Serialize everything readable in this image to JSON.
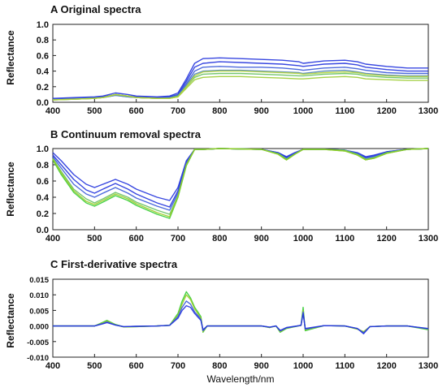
{
  "chart_data": [
    {
      "type": "line",
      "title": "A Original spectra",
      "ylabel": "Reflectance",
      "xlim": [
        400,
        1300
      ],
      "ylim": [
        0.0,
        1.0
      ],
      "xticks": [
        "400",
        "500",
        "600",
        "700",
        "800",
        "900",
        "1000",
        "1100",
        "1200",
        "1300"
      ],
      "yticks": [
        "0.0",
        "0.2",
        "0.4",
        "0.6",
        "0.8",
        "1.0"
      ],
      "x": [
        400,
        450,
        500,
        520,
        550,
        580,
        600,
        650,
        680,
        700,
        720,
        740,
        760,
        800,
        850,
        900,
        950,
        990,
        1000,
        1050,
        1100,
        1130,
        1150,
        1200,
        1250,
        1300
      ],
      "series": [
        {
          "color": "#2233dd",
          "values": [
            0.05,
            0.06,
            0.07,
            0.08,
            0.12,
            0.1,
            0.08,
            0.07,
            0.08,
            0.12,
            0.3,
            0.5,
            0.56,
            0.57,
            0.56,
            0.55,
            0.54,
            0.52,
            0.5,
            0.53,
            0.54,
            0.52,
            0.49,
            0.46,
            0.44,
            0.44
          ]
        },
        {
          "color": "#2233dd",
          "values": [
            0.04,
            0.05,
            0.06,
            0.07,
            0.1,
            0.08,
            0.07,
            0.06,
            0.07,
            0.1,
            0.27,
            0.45,
            0.5,
            0.52,
            0.51,
            0.5,
            0.49,
            0.47,
            0.46,
            0.49,
            0.5,
            0.48,
            0.45,
            0.42,
            0.4,
            0.4
          ]
        },
        {
          "color": "#3a5ad8",
          "values": [
            0.04,
            0.05,
            0.06,
            0.06,
            0.09,
            0.07,
            0.06,
            0.05,
            0.06,
            0.09,
            0.24,
            0.4,
            0.45,
            0.46,
            0.45,
            0.45,
            0.44,
            0.42,
            0.41,
            0.44,
            0.45,
            0.43,
            0.41,
            0.38,
            0.37,
            0.37
          ]
        },
        {
          "color": "#4c7fb8",
          "values": [
            0.03,
            0.04,
            0.05,
            0.06,
            0.09,
            0.07,
            0.06,
            0.05,
            0.06,
            0.09,
            0.22,
            0.36,
            0.4,
            0.41,
            0.41,
            0.4,
            0.39,
            0.38,
            0.37,
            0.4,
            0.41,
            0.39,
            0.37,
            0.35,
            0.34,
            0.34
          ]
        },
        {
          "color": "#66c060",
          "values": [
            0.03,
            0.04,
            0.05,
            0.06,
            0.1,
            0.08,
            0.06,
            0.05,
            0.05,
            0.08,
            0.2,
            0.32,
            0.36,
            0.37,
            0.37,
            0.36,
            0.35,
            0.34,
            0.34,
            0.36,
            0.37,
            0.36,
            0.34,
            0.32,
            0.31,
            0.31
          ]
        },
        {
          "color": "#9ccc33",
          "values": [
            0.03,
            0.04,
            0.05,
            0.06,
            0.1,
            0.08,
            0.06,
            0.05,
            0.05,
            0.07,
            0.18,
            0.29,
            0.32,
            0.33,
            0.33,
            0.32,
            0.31,
            0.3,
            0.3,
            0.32,
            0.33,
            0.32,
            0.3,
            0.29,
            0.28,
            0.28
          ]
        },
        {
          "color": "#b5d63a",
          "values": [
            0.03,
            0.04,
            0.05,
            0.06,
            0.1,
            0.08,
            0.06,
            0.05,
            0.05,
            0.07,
            0.2,
            0.34,
            0.39,
            0.4,
            0.4,
            0.39,
            0.38,
            0.37,
            0.36,
            0.38,
            0.39,
            0.38,
            0.36,
            0.34,
            0.33,
            0.33
          ]
        }
      ]
    },
    {
      "type": "line",
      "title": "B Continuum removal spectra",
      "ylabel": "Reflectance",
      "xlim": [
        400,
        1300
      ],
      "ylim": [
        0.0,
        1.0
      ],
      "xticks": [
        "400",
        "500",
        "600",
        "700",
        "800",
        "900",
        "1000",
        "1100",
        "1200",
        "1300"
      ],
      "yticks": [
        "0.0",
        "0.2",
        "0.4",
        "0.6",
        "0.8",
        "1.0"
      ],
      "x": [
        400,
        420,
        450,
        480,
        500,
        520,
        550,
        580,
        600,
        650,
        680,
        700,
        720,
        740,
        760,
        800,
        900,
        940,
        960,
        980,
        1000,
        1050,
        1100,
        1130,
        1150,
        1170,
        1200,
        1250,
        1300
      ],
      "series": [
        {
          "color": "#2233dd",
          "values": [
            0.95,
            0.85,
            0.68,
            0.56,
            0.52,
            0.56,
            0.62,
            0.56,
            0.5,
            0.4,
            0.36,
            0.52,
            0.85,
            0.99,
            0.99,
            1.0,
            0.99,
            0.95,
            0.9,
            0.95,
            0.99,
            0.99,
            0.98,
            0.95,
            0.9,
            0.92,
            0.96,
            0.99,
            1.0
          ]
        },
        {
          "color": "#2233dd",
          "values": [
            0.92,
            0.8,
            0.62,
            0.49,
            0.45,
            0.5,
            0.57,
            0.5,
            0.44,
            0.33,
            0.28,
            0.48,
            0.83,
            0.99,
            0.99,
            1.0,
            0.99,
            0.95,
            0.89,
            0.94,
            0.99,
            0.99,
            0.98,
            0.94,
            0.89,
            0.91,
            0.96,
            0.99,
            1.0
          ]
        },
        {
          "color": "#3a5ad8",
          "values": [
            0.9,
            0.76,
            0.56,
            0.44,
            0.4,
            0.45,
            0.52,
            0.45,
            0.39,
            0.29,
            0.24,
            0.45,
            0.82,
            0.99,
            0.99,
            1.0,
            0.99,
            0.94,
            0.88,
            0.94,
            0.99,
            0.99,
            0.98,
            0.94,
            0.88,
            0.9,
            0.95,
            0.99,
            1.0
          ]
        },
        {
          "color": "#66c060",
          "values": [
            0.88,
            0.72,
            0.5,
            0.38,
            0.33,
            0.38,
            0.46,
            0.4,
            0.34,
            0.24,
            0.19,
            0.42,
            0.8,
            0.99,
            0.99,
            1.0,
            0.99,
            0.94,
            0.87,
            0.93,
            0.99,
            0.99,
            0.98,
            0.93,
            0.87,
            0.89,
            0.95,
            0.99,
            1.0
          ]
        },
        {
          "color": "#33cc33",
          "values": [
            0.86,
            0.68,
            0.46,
            0.33,
            0.29,
            0.34,
            0.42,
            0.36,
            0.3,
            0.19,
            0.14,
            0.4,
            0.79,
            0.99,
            0.99,
            1.0,
            0.99,
            0.93,
            0.86,
            0.93,
            0.99,
            0.99,
            0.97,
            0.92,
            0.86,
            0.88,
            0.94,
            0.99,
            1.0
          ]
        },
        {
          "color": "#99cc22",
          "values": [
            0.87,
            0.7,
            0.48,
            0.35,
            0.31,
            0.36,
            0.44,
            0.38,
            0.32,
            0.21,
            0.16,
            0.41,
            0.8,
            0.99,
            0.99,
            1.0,
            0.99,
            0.93,
            0.86,
            0.93,
            0.99,
            0.99,
            0.97,
            0.92,
            0.86,
            0.88,
            0.94,
            0.99,
            1.0
          ]
        }
      ]
    },
    {
      "type": "line",
      "title": "C First-derivative spectra",
      "ylabel": "Reflectance",
      "xlabel": "Wavelength/nm",
      "xlim": [
        400,
        1300
      ],
      "ylim": [
        -0.01,
        0.015
      ],
      "xticks": [
        "400",
        "500",
        "600",
        "700",
        "800",
        "900",
        "1000",
        "1100",
        "1200",
        "1300"
      ],
      "yticks": [
        "-0.010",
        "-0.005",
        "0.000",
        "0.005",
        "0.010",
        "0.015"
      ],
      "x": [
        400,
        450,
        500,
        520,
        530,
        550,
        570,
        600,
        650,
        680,
        700,
        710,
        720,
        730,
        740,
        750,
        755,
        760,
        770,
        800,
        850,
        900,
        920,
        935,
        945,
        960,
        995,
        1000,
        1005,
        1050,
        1100,
        1130,
        1145,
        1160,
        1200,
        1250,
        1300
      ],
      "series": [
        {
          "color": "#33cc33",
          "values": [
            0.0,
            0.0,
            0.0,
            0.0012,
            0.0018,
            0.0005,
            -0.0003,
            -0.0002,
            0.0,
            0.0002,
            0.004,
            0.008,
            0.011,
            0.009,
            0.006,
            0.004,
            0.003,
            -0.002,
            0.0,
            0.0,
            0.0,
            0.0,
            -0.0005,
            0.0,
            -0.002,
            -0.0008,
            0.0002,
            0.006,
            -0.0015,
            0.0001,
            0.0,
            -0.001,
            -0.002,
            -0.0002,
            0.0,
            0.0,
            -0.0012
          ]
        },
        {
          "color": "#99cc22",
          "values": [
            0.0,
            0.0,
            0.0,
            0.001,
            0.0016,
            0.0004,
            -0.0003,
            -0.0002,
            0.0,
            0.0002,
            0.0035,
            0.007,
            0.01,
            0.0085,
            0.0055,
            0.0035,
            0.0025,
            -0.0018,
            0.0,
            0.0,
            0.0,
            0.0,
            -0.0005,
            0.0,
            -0.0018,
            -0.0007,
            0.0002,
            0.005,
            -0.0012,
            0.0001,
            0.0,
            -0.001,
            -0.0018,
            -0.0002,
            0.0,
            0.0,
            -0.001
          ]
        },
        {
          "color": "#3a5ad8",
          "values": [
            0.0,
            0.0,
            0.0,
            0.0008,
            0.0013,
            0.0003,
            -0.0002,
            -0.0001,
            0.0,
            0.0002,
            0.003,
            0.006,
            0.008,
            0.007,
            0.0045,
            0.003,
            0.002,
            -0.0015,
            0.0,
            0.0,
            0.0,
            0.0,
            -0.0004,
            0.0,
            -0.0016,
            -0.0006,
            0.0002,
            0.0045,
            -0.001,
            0.0001,
            0.0,
            -0.0008,
            -0.0022,
            -0.0002,
            0.0,
            0.0,
            -0.0009
          ]
        },
        {
          "color": "#2233dd",
          "values": [
            0.0,
            0.0,
            0.0,
            0.0007,
            0.0011,
            0.0003,
            -0.0002,
            -0.0001,
            0.0,
            0.0002,
            0.0025,
            0.005,
            0.0065,
            0.006,
            0.004,
            0.0025,
            0.0018,
            -0.0012,
            0.0,
            0.0,
            0.0,
            0.0,
            -0.0004,
            0.0,
            -0.0014,
            -0.0005,
            0.0002,
            0.004,
            -0.0008,
            0.0001,
            0.0,
            -0.0008,
            -0.0025,
            -0.0002,
            0.0,
            0.0,
            -0.0008
          ]
        }
      ]
    }
  ]
}
